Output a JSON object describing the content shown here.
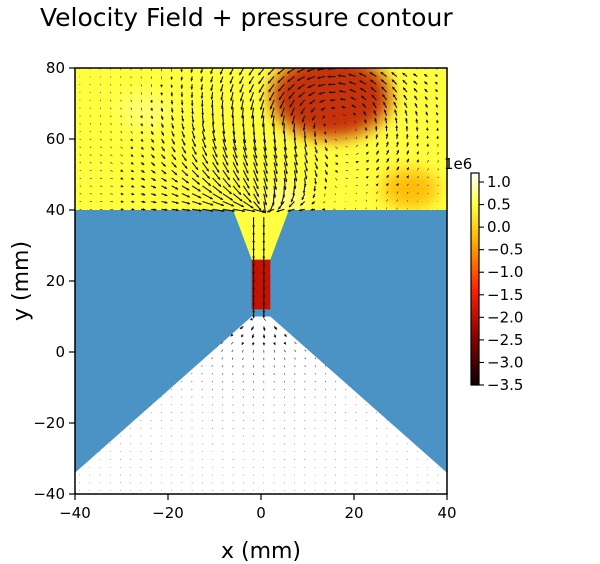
{
  "chart_data": {
    "type": "heatmap",
    "title": "Velocity Field + pressure contour",
    "xlabel": "x (mm)",
    "ylabel": "y (mm)",
    "xlim": [
      -40,
      40
    ],
    "ylim": [
      -40,
      80
    ],
    "x_ticks": [
      -40,
      -20,
      0,
      20,
      40
    ],
    "x_tick_labels": [
      "−40",
      "−20",
      "0",
      "20",
      "40"
    ],
    "y_ticks": [
      -40,
      -20,
      0,
      20,
      40,
      60,
      80
    ],
    "y_tick_labels": [
      "−40",
      "−20",
      "0",
      "20",
      "40",
      "60",
      "80"
    ],
    "grid": false,
    "colorbar": {
      "colormap": "hot",
      "multiplier_label": "1e6",
      "range": [
        -3.5,
        1.2
      ],
      "ticks": [
        1.0,
        0.5,
        0.0,
        -0.5,
        -1.0,
        -1.5,
        -2.0,
        -2.5,
        -3.0,
        -3.5
      ],
      "tick_labels": [
        "1.0",
        "0.5",
        "0.0",
        "−0.5",
        "−1.0",
        "−1.5",
        "−2.0",
        "−2.5",
        "−3.0",
        "−3.5"
      ]
    },
    "geometry": {
      "chamber_floor_y": 40,
      "throat_half_width": 2,
      "throat_y_range": [
        12,
        26
      ],
      "inlet_outer_half_width": 6,
      "expansion_apex_y": 10,
      "expansion_edge_y": -34
    },
    "solid_color": "#4a93c4",
    "pressure_hotspots": [
      {
        "x": 15,
        "y": 72,
        "value": -2.0
      },
      {
        "x": 32,
        "y": 46,
        "value": -0.3
      },
      {
        "x": 5,
        "y": 43,
        "value": 0.8
      },
      {
        "x": -25,
        "y": 68,
        "value": 0.7
      },
      {
        "x": 0,
        "y": 18,
        "value": -2.8
      }
    ],
    "vortex": {
      "x": 14,
      "y": 65
    }
  }
}
